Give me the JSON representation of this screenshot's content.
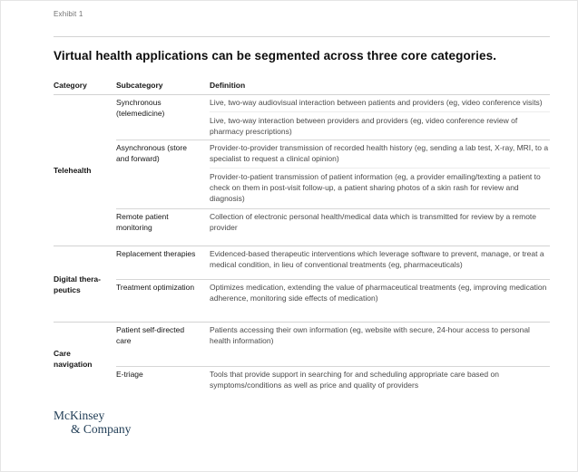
{
  "page": {
    "exhibit_label": "Exhibit 1",
    "title": "Virtual health applications can be segmented across three core categories."
  },
  "table": {
    "headers": {
      "category": "Category",
      "subcategory": "Subcategory",
      "definition": "Definition"
    },
    "categories": [
      {
        "label": "Telehealth",
        "groups": [
          {
            "subcategory": "Synchronous (telemedicine)",
            "definitions": [
              "Live, two-way audiovisual interaction between patients and providers (eg, video conference visits)",
              "Live, two-way interaction between providers and providers (eg, video conference review of pharmacy prescriptions)"
            ]
          },
          {
            "subcategory": "Asynchronous (store and forward)",
            "definitions": [
              "Provider-to-provider transmission of recorded health history (eg, sending a lab test, X-ray, MRI, to a specialist to request a clinical opinion)",
              "Provider-to-patient transmission of patient information (eg, a provider emailing/texting a patient to check on them in post-visit follow-up, a patient sharing photos of a skin rash for review and diagnosis)"
            ]
          },
          {
            "subcategory": "Remote patient monitoring",
            "definitions": [
              "Collection of electronic personal health/medical data which is transmitted for review by a remote provider"
            ]
          }
        ]
      },
      {
        "label": "Digital thera-peutics",
        "groups": [
          {
            "subcategory": "Replacement therapies",
            "definitions": [
              "Evidenced-based therapeutic interventions which leverage software to prevent, manage, or treat a medical condition, in lieu of conventional treatments (eg, pharmaceuticals)"
            ]
          },
          {
            "subcategory": "Treatment optimization",
            "definitions": [
              "Optimizes medication, extending the value of pharmaceutical treatments (eg, improving medication adherence, monitoring side effects of medication)"
            ]
          }
        ]
      },
      {
        "label": "Care navigation",
        "groups": [
          {
            "subcategory": "Patient self-directed care",
            "definitions": [
              "Patients accessing their own information (eg, website with secure, 24-hour access to personal health information)"
            ]
          },
          {
            "subcategory": "E-triage",
            "definitions": [
              "Tools that provide support in searching for and scheduling appropriate care based on symptoms/conditions as well as price and quality of providers"
            ]
          }
        ]
      }
    ]
  },
  "footer": {
    "logo_line1": "McKinsey",
    "logo_line2": "& Company"
  },
  "colors": {
    "logo_navy": "#1f3c55",
    "divider_gray": "#d2d2d2",
    "faint_divider_gray": "#ececec",
    "definition_text": "#4a4a4a"
  }
}
